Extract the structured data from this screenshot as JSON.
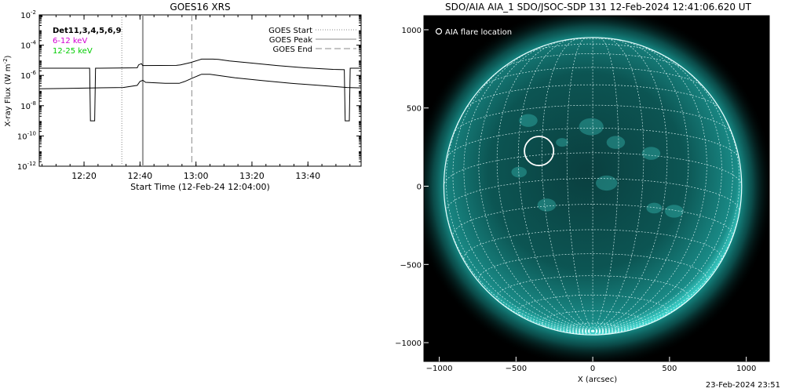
{
  "chart_data": [
    {
      "type": "line",
      "title": "GOES16 XRS",
      "xlabel": "Start Time (12-Feb-24 12:04:00)",
      "ylabel": "X-ray Flux (W m",
      "ylabel_superscript": "-2",
      "ylabel_suffix": ")",
      "y_scale": "log",
      "ylim": [
        1e-12,
        0.01
      ],
      "y_ticks": [
        {
          "base": "10",
          "exp": "-2"
        },
        {
          "base": "10",
          "exp": "-4"
        },
        {
          "base": "10",
          "exp": "-6"
        },
        {
          "base": "10",
          "exp": "-8"
        },
        {
          "base": "10",
          "exp": "-10"
        },
        {
          "base": "10",
          "exp": "-12"
        }
      ],
      "xlim_minutes": [
        0,
        115
      ],
      "x_ticks": [
        {
          "label": "12:20",
          "minute": 16
        },
        {
          "label": "12:40",
          "minute": 36
        },
        {
          "label": "13:00",
          "minute": 56
        },
        {
          "label": "13:20",
          "minute": 76
        },
        {
          "label": "13:40",
          "minute": 96
        }
      ],
      "inline_labels": [
        {
          "text": "Det11,3,4,5,6,9",
          "color": "#000000"
        },
        {
          "text": "6-12 keV",
          "color": "#d400d4"
        },
        {
          "text": "12-25 keV",
          "color": "#00cc00"
        }
      ],
      "legend": {
        "placement": "top-right",
        "entries": [
          {
            "label": "GOES Start",
            "style": "dotted",
            "color": "#888888"
          },
          {
            "label": "GOES Peak",
            "style": "solid",
            "color": "#888888"
          },
          {
            "label": "GOES End",
            "style": "dashed",
            "color": "#888888"
          }
        ]
      },
      "event_lines": {
        "start_minute": 29.5,
        "peak_minute": 37,
        "end_minute": 54.5
      },
      "series": [
        {
          "color": "#000000",
          "x": [
            0,
            18,
            18.3,
            19.8,
            20.1,
            35,
            35.5,
            36.5,
            37,
            49,
            50.5,
            54,
            58,
            62,
            64,
            68,
            75,
            85,
            95,
            105,
            109,
            109.3,
            110.8,
            111.1,
            115
          ],
          "y": [
            3e-06,
            3e-06,
            1e-09,
            1e-09,
            3e-06,
            3.2e-06,
            5e-06,
            6e-06,
            4.5e-06,
            4.6e-06,
            5e-06,
            7e-06,
            1.2e-05,
            1.2e-05,
            1.15e-05,
            9e-06,
            6.8e-06,
            4.5e-06,
            3.2e-06,
            2.5e-06,
            2.4e-06,
            1e-09,
            1e-09,
            3e-06,
            3e-06
          ]
        },
        {
          "color": "#000000",
          "x": [
            0,
            10,
            20,
            30,
            35,
            36,
            37,
            38,
            45,
            50,
            52,
            55,
            58,
            61,
            64,
            70,
            80,
            90,
            100,
            110,
            115
          ],
          "y": [
            1.3e-07,
            1.4e-07,
            1.5e-07,
            1.6e-07,
            2.2e-07,
            4e-07,
            4.8e-07,
            3.5e-07,
            3e-07,
            3e-07,
            4e-07,
            7e-07,
            1.2e-06,
            1.2e-06,
            1e-06,
            7e-07,
            4.5e-07,
            3e-07,
            2.2e-07,
            1.6e-07,
            1.5e-07
          ]
        }
      ]
    },
    {
      "type": "scatter",
      "title": "SDO/AIA AIA_1 SDO/JSOC-SDP 131 12-Feb-2024 12:41:06.620 UT",
      "xlabel": "X (arcsec)",
      "ylabel": "",
      "xlim": [
        -1100,
        1150
      ],
      "ylim": [
        -1120,
        1090
      ],
      "x_ticks": [
        -1000,
        -500,
        0,
        500,
        1000
      ],
      "y_ticks": [
        -1000,
        -500,
        0,
        500,
        1000
      ],
      "solar_radius_arcsec": 970,
      "grid_spacing_deg": 10,
      "legend": {
        "placement": "top-left",
        "entries": [
          {
            "label": "AIA flare location",
            "marker": "circle"
          }
        ]
      },
      "flare_location": {
        "x": -350,
        "y": 225,
        "radius": 95
      }
    }
  ],
  "footer_timestamp": "23-Feb-2024 23:51"
}
